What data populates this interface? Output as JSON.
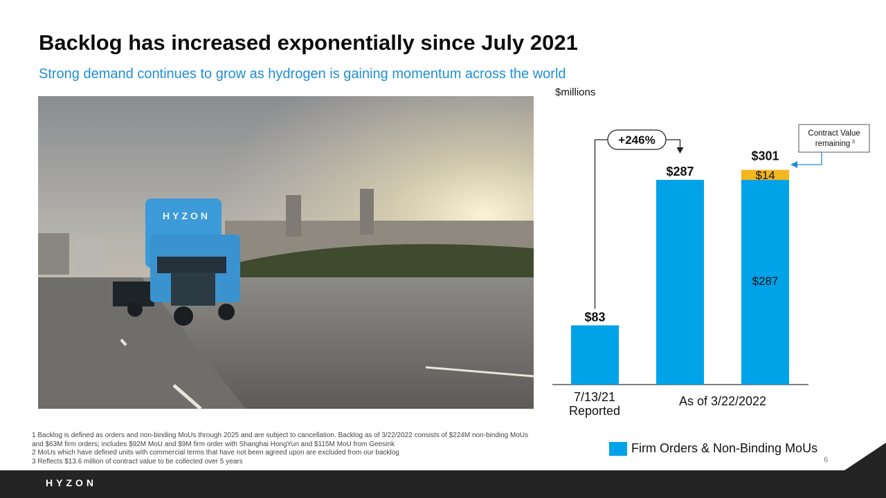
{
  "slide": {
    "title": "Backlog has increased exponentially since July 2021",
    "subtitle": "Strong demand continues to grow as hydrogen is gaining momentum across the world",
    "units": "$millions",
    "page_number": "6"
  },
  "photo": {
    "truck_text": "HYZON"
  },
  "chart_data": {
    "type": "bar",
    "stacked": true,
    "ylim": [
      0,
      320
    ],
    "categories": [
      "7/13/21 Reported",
      "As of 3/22/2022",
      "As of 3/22/2022"
    ],
    "category_labels": [
      {
        "lines": [
          "7/13/21",
          "Reported"
        ]
      },
      {
        "lines": [
          "As of  3/22/2022"
        ]
      }
    ],
    "series": [
      {
        "name": "Firm Orders & Non-Binding MoUs",
        "color": "#00a3e8",
        "values": [
          83,
          287,
          287
        ]
      },
      {
        "name": "Contract Value remaining",
        "color": "#f5b51d",
        "values": [
          0,
          0,
          14
        ]
      }
    ],
    "totals": [
      "$83",
      "$287",
      "$301"
    ],
    "segment_labels": [
      "$287",
      "$14"
    ],
    "annotation": {
      "text": "+246%",
      "from": "7/13/21 Reported",
      "to": "As of 3/22/2022"
    },
    "callout": {
      "text": "Contract Value remaining",
      "superscript": "3"
    },
    "legend": {
      "label": "Firm Orders & Non-Binding MoUs",
      "position": "bottom-right"
    }
  },
  "footnotes": [
    "1 Backlog is defined as orders and non-binding MoUs through 2025 and are subject to cancellation. Backlog as of 3/22/2022 consists of $224M non-binding   MoUs",
    "and $63M firm orders; includes $92M MoU and $9M firm order with Shanghai HongYun and $115M MoU from Geesink",
    "2 MoUs which have defined units with commercial terms that have not been agreed upon are excluded from our backlog",
    "3 Reflects $13.6 million of contract value to be collected over 5 years"
  ],
  "footer": {
    "logo": "HYZON"
  }
}
